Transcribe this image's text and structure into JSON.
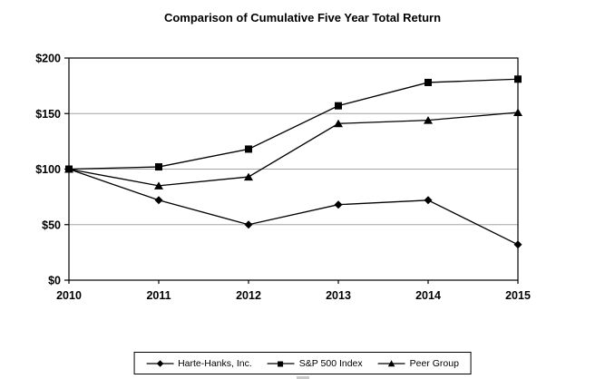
{
  "chart_data": {
    "type": "line",
    "title": "Comparison of Cumulative Five Year Total Return",
    "categories": [
      "2010",
      "2011",
      "2012",
      "2013",
      "2014",
      "2015"
    ],
    "series": [
      {
        "name": "Harte-Hanks, Inc.",
        "marker": "diamond",
        "values": [
          100,
          72,
          50,
          68,
          72,
          32
        ]
      },
      {
        "name": "S&P 500 Index",
        "marker": "square",
        "values": [
          100,
          102,
          118,
          157,
          178,
          181
        ]
      },
      {
        "name": "Peer Group",
        "marker": "triangle",
        "values": [
          100,
          85,
          93,
          141,
          144,
          151
        ]
      }
    ],
    "xlabel": "",
    "ylabel": "",
    "ylim": [
      0,
      200
    ],
    "ytick_values": [
      0,
      50,
      100,
      150,
      200
    ],
    "ytick_labels": [
      "$0",
      "$50",
      "$100",
      "$150",
      "$200"
    ],
    "gridline_values": [
      50,
      100,
      150
    ],
    "grid": "horizontal",
    "legend_position": "bottom-center-boxed",
    "colors": {
      "series": "#000000",
      "grid": "#a6a6a6",
      "text": "#000000",
      "background": "#ffffff"
    }
  }
}
